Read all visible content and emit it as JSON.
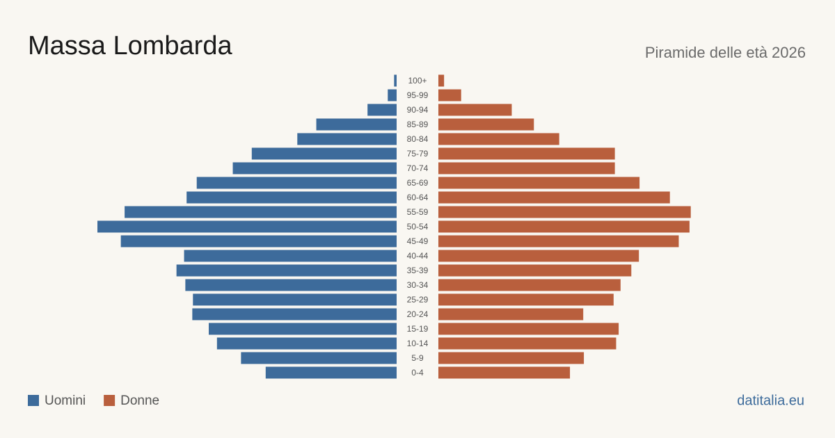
{
  "chart_data": {
    "type": "pyramid",
    "title": "Massa Lombarda",
    "subtitle": "Piramide delle età 2026",
    "source": "datitalia.eu",
    "categories": [
      "100+",
      "95-99",
      "90-94",
      "85-89",
      "80-84",
      "75-79",
      "70-74",
      "65-69",
      "60-64",
      "55-59",
      "50-54",
      "45-49",
      "40-44",
      "35-39",
      "30-34",
      "25-29",
      "20-24",
      "15-19",
      "10-14",
      "5-9",
      "0-4"
    ],
    "xlim": [
      0,
      550
    ],
    "series": [
      {
        "name": "Uomini",
        "color": "#3d6b9b",
        "values": [
          4,
          14,
          46,
          127,
          157,
          229,
          259,
          316,
          332,
          430,
          473,
          436,
          336,
          348,
          334,
          322,
          323,
          297,
          284,
          246,
          207
        ]
      },
      {
        "name": "Donne",
        "color": "#b95f3d",
        "values": [
          9,
          36,
          116,
          151,
          191,
          279,
          279,
          318,
          366,
          399,
          397,
          380,
          317,
          305,
          288,
          277,
          229,
          285,
          281,
          230,
          208
        ]
      }
    ]
  }
}
